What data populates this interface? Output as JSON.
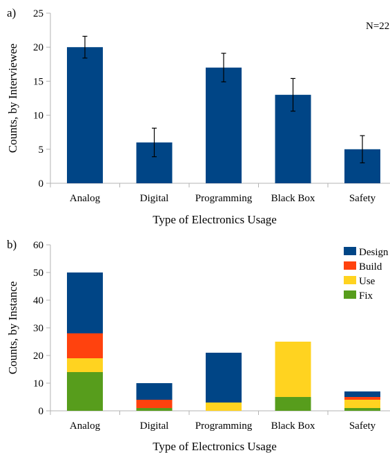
{
  "chart_data": [
    {
      "type": "bar",
      "panel_label": "a)",
      "annotation": "N=22",
      "categories": [
        "Analog",
        "Digital",
        "Programming",
        "Black Box",
        "Safety"
      ],
      "values": [
        20,
        6,
        17,
        13,
        5
      ],
      "error_bars": [
        {
          "low": 18.4,
          "high": 21.6
        },
        {
          "low": 3.9,
          "high": 8.1
        },
        {
          "low": 14.9,
          "high": 19.1
        },
        {
          "low": 10.6,
          "high": 15.4
        },
        {
          "low": 3.0,
          "high": 7.0
        }
      ],
      "xlabel": "Type of Electronics Usage",
      "ylabel": "Counts, by Interviewee",
      "ylim": [
        0,
        25
      ],
      "yticks": [
        0,
        5,
        10,
        15,
        20,
        25
      ],
      "color": "#004586",
      "grid": false
    },
    {
      "type": "bar",
      "stacked": true,
      "panel_label": "b)",
      "categories": [
        "Analog",
        "Digital",
        "Programming",
        "Black Box",
        "Safety"
      ],
      "series": [
        {
          "name": "Fix",
          "color": "#579d1c",
          "values": [
            14,
            1,
            0,
            5,
            1
          ]
        },
        {
          "name": "Use",
          "color": "#ffd320",
          "values": [
            5,
            0,
            3,
            20,
            3
          ]
        },
        {
          "name": "Build",
          "color": "#ff420e",
          "values": [
            9,
            3,
            0,
            0,
            1
          ]
        },
        {
          "name": "Design",
          "color": "#004586",
          "values": [
            22,
            6,
            18,
            0,
            2
          ]
        }
      ],
      "legend_order": [
        "Design",
        "Build",
        "Use",
        "Fix"
      ],
      "legend_placement": "top-right",
      "xlabel": "Type of Electronics Usage",
      "ylabel": "Counts, by Instance",
      "ylim": [
        0,
        60
      ],
      "yticks": [
        0,
        10,
        20,
        30,
        40,
        50,
        60
      ],
      "grid": false
    }
  ]
}
